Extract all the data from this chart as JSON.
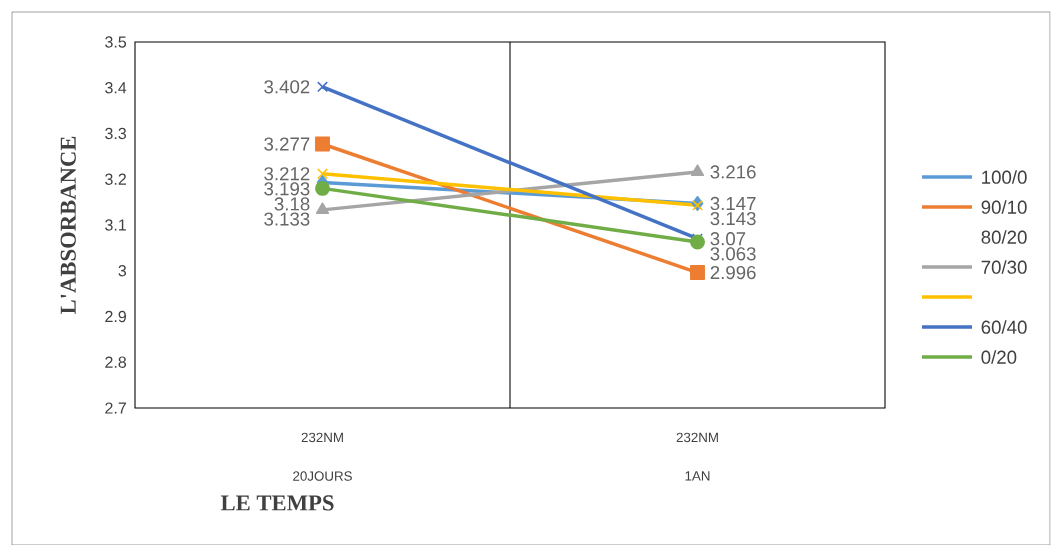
{
  "chart_data": {
    "type": "line",
    "xlabel": "LE TEMPS",
    "ylabel": "L'ABSORBANCE",
    "categories": [
      "20JOURS",
      "1AN"
    ],
    "ylim": [
      2.7,
      3.5
    ],
    "yticks": [
      {
        "value": 2.7,
        "label": "2.7"
      },
      {
        "value": 2.8,
        "label": "2.8"
      },
      {
        "value": 2.9,
        "label": "2.9"
      },
      {
        "value": 3,
        "label": "3"
      },
      {
        "value": 3.1,
        "label": "3.1"
      },
      {
        "value": 3.2,
        "label": "3.2"
      },
      {
        "value": 3.3,
        "label": "3.3"
      },
      {
        "value": 3.4,
        "label": "3.4"
      },
      {
        "value": 3.5,
        "label": "3.5"
      }
    ],
    "legend": "right",
    "grid": false,
    "annotations": [
      "80/20",
      "232NM",
      "232NM"
    ],
    "series": [
      {
        "name": "100/0",
        "color": "#5b9bd5",
        "marker": "diamond",
        "values": [
          3.193,
          3.147
        ],
        "value_labels": [
          "3.193",
          "3.147"
        ]
      },
      {
        "name": "90/10",
        "color": "#ed7d31",
        "marker": "square",
        "values": [
          3.277,
          2.996
        ],
        "value_labels": [
          "3.277",
          "2.996"
        ]
      },
      {
        "name": "70/30",
        "color": "#a5a5a5",
        "marker": "triangle",
        "values": [
          3.133,
          3.216
        ],
        "value_labels": [
          "3.133",
          "3.216"
        ]
      },
      {
        "color": "#ffc000",
        "marker": "cross",
        "values": [
          3.212,
          3.143
        ],
        "value_labels": [
          "3.212",
          "3.143"
        ]
      },
      {
        "name": "60/40",
        "color": "#4472c4",
        "marker": "cross",
        "values": [
          3.402,
          3.07
        ],
        "value_labels": [
          "3.402",
          "3.07"
        ]
      },
      {
        "name": "0/20",
        "color": "#70ad47",
        "marker": "circle",
        "values": [
          3.18,
          3.063
        ],
        "value_labels": [
          "3.18",
          "3.063"
        ]
      }
    ]
  }
}
